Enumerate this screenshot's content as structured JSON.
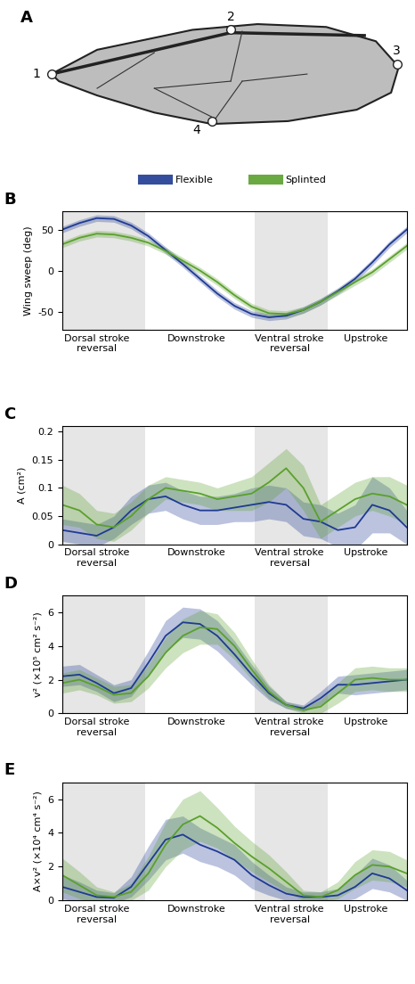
{
  "wing": {
    "title": "A",
    "points": [
      "1",
      "2",
      "3",
      "4"
    ]
  },
  "chart_data": [
    {
      "type": "line",
      "title": "B",
      "y_label": "Wing sweep (deg)",
      "legend": "upper center",
      "xlim": [
        0,
        1
      ],
      "ylim": [
        -72,
        72
      ],
      "yticks": [
        -50,
        0,
        50
      ],
      "xticks": [
        {
          "value": 0.1,
          "label": "Dorsal stroke\nreversal"
        },
        {
          "value": 0.39,
          "label": "Downstroke"
        },
        {
          "value": 0.66,
          "label": "Ventral stroke\nreversal"
        },
        {
          "value": 0.88,
          "label": "Upstroke"
        }
      ],
      "shaded_regions": [
        [
          0,
          0.24
        ],
        [
          0.56,
          0.77
        ]
      ],
      "x": [
        0,
        0.05,
        0.1,
        0.15,
        0.2,
        0.25,
        0.3,
        0.35,
        0.4,
        0.45,
        0.5,
        0.55,
        0.6,
        0.65,
        0.7,
        0.75,
        0.8,
        0.85,
        0.9,
        0.95,
        1.0
      ],
      "series": [
        {
          "name": "Flexible",
          "color": "#1f3a93",
          "values": [
            50,
            58,
            64,
            63,
            55,
            42,
            25,
            8,
            -10,
            -28,
            -43,
            -53,
            -57,
            -55,
            -48,
            -38,
            -25,
            -10,
            10,
            32,
            50
          ],
          "band": [
            4,
            4,
            4,
            4,
            4,
            4,
            4,
            4,
            4,
            4,
            4,
            4,
            4,
            4,
            4,
            4,
            4,
            4,
            4,
            4,
            4
          ]
        },
        {
          "name": "Splinted",
          "color": "#5aa02c",
          "values": [
            32,
            40,
            45,
            44,
            40,
            34,
            24,
            12,
            0,
            -14,
            -30,
            -44,
            -52,
            -53,
            -48,
            -38,
            -26,
            -14,
            -2,
            14,
            30
          ],
          "band": [
            4,
            4,
            4,
            4,
            4,
            4,
            4,
            4,
            4,
            4,
            4,
            4,
            4,
            4,
            4,
            4,
            4,
            4,
            4,
            4,
            4
          ]
        }
      ]
    },
    {
      "type": "line",
      "title": "C",
      "y_label": "A (cm²)",
      "xlim": [
        0,
        1
      ],
      "ylim": [
        0,
        0.21
      ],
      "yticks": [
        0,
        0.05,
        0.1,
        0.15,
        0.2
      ],
      "xticks": [
        {
          "value": 0.1,
          "label": "Dorsal stroke\nreversal"
        },
        {
          "value": 0.39,
          "label": "Downstroke"
        },
        {
          "value": 0.66,
          "label": "Ventral stroke\nreversal"
        },
        {
          "value": 0.88,
          "label": "Upstroke"
        }
      ],
      "shaded_regions": [
        [
          0,
          0.24
        ],
        [
          0.56,
          0.77
        ]
      ],
      "x": [
        0,
        0.05,
        0.1,
        0.15,
        0.2,
        0.25,
        0.3,
        0.35,
        0.4,
        0.45,
        0.5,
        0.55,
        0.6,
        0.65,
        0.7,
        0.75,
        0.8,
        0.85,
        0.9,
        0.95,
        1.0
      ],
      "series": [
        {
          "name": "Flexible",
          "color": "#1f3a93",
          "values": [
            0.025,
            0.02,
            0.015,
            0.03,
            0.06,
            0.08,
            0.085,
            0.07,
            0.06,
            0.06,
            0.065,
            0.07,
            0.075,
            0.07,
            0.045,
            0.04,
            0.025,
            0.03,
            0.07,
            0.06,
            0.03
          ],
          "band": [
            0.02,
            0.02,
            0.02,
            0.02,
            0.025,
            0.025,
            0.025,
            0.025,
            0.025,
            0.025,
            0.025,
            0.03,
            0.03,
            0.03,
            0.03,
            0.03,
            0.03,
            0.04,
            0.05,
            0.04,
            0.03
          ]
        },
        {
          "name": "Splinted",
          "color": "#5aa02c",
          "values": [
            0.07,
            0.06,
            0.035,
            0.03,
            0.05,
            0.08,
            0.1,
            0.095,
            0.09,
            0.08,
            0.085,
            0.09,
            0.11,
            0.135,
            0.1,
            0.04,
            0.06,
            0.08,
            0.09,
            0.085,
            0.07
          ],
          "band": [
            0.035,
            0.03,
            0.025,
            0.025,
            0.025,
            0.025,
            0.02,
            0.02,
            0.02,
            0.02,
            0.025,
            0.03,
            0.035,
            0.035,
            0.04,
            0.03,
            0.03,
            0.03,
            0.03,
            0.035,
            0.035
          ]
        }
      ]
    },
    {
      "type": "line",
      "title": "D",
      "y_label": "v² (×10⁵ cm² s⁻²)",
      "xlim": [
        0,
        1
      ],
      "ylim": [
        0,
        7
      ],
      "yticks": [
        0,
        2,
        4,
        6
      ],
      "xticks": [
        {
          "value": 0.1,
          "label": "Dorsal stroke\nreversal"
        },
        {
          "value": 0.39,
          "label": "Downstroke"
        },
        {
          "value": 0.66,
          "label": "Ventral stroke\nreversal"
        },
        {
          "value": 0.88,
          "label": "Upstroke"
        }
      ],
      "shaded_regions": [
        [
          0,
          0.24
        ],
        [
          0.56,
          0.77
        ]
      ],
      "x": [
        0,
        0.05,
        0.1,
        0.15,
        0.2,
        0.25,
        0.3,
        0.35,
        0.4,
        0.45,
        0.5,
        0.55,
        0.6,
        0.65,
        0.7,
        0.75,
        0.8,
        0.85,
        0.9,
        0.95,
        1.0
      ],
      "series": [
        {
          "name": "Flexible",
          "color": "#1f3a93",
          "values": [
            2.2,
            2.3,
            1.8,
            1.2,
            1.5,
            3.0,
            4.6,
            5.4,
            5.3,
            4.6,
            3.5,
            2.3,
            1.2,
            0.5,
            0.3,
            0.9,
            1.7,
            1.7,
            1.8,
            1.9,
            2.0
          ],
          "band": [
            0.6,
            0.6,
            0.5,
            0.5,
            0.5,
            0.7,
            0.9,
            0.9,
            0.9,
            0.9,
            0.8,
            0.6,
            0.4,
            0.2,
            0.2,
            0.4,
            0.5,
            0.6,
            0.6,
            0.6,
            0.6
          ]
        },
        {
          "name": "Splinted",
          "color": "#5aa02c",
          "values": [
            1.8,
            2.0,
            1.6,
            1.1,
            1.2,
            2.2,
            3.6,
            4.6,
            5.1,
            5.0,
            4.0,
            2.6,
            1.3,
            0.5,
            0.2,
            0.4,
            1.2,
            2.0,
            2.1,
            2.0,
            2.0
          ],
          "band": [
            0.6,
            0.6,
            0.5,
            0.5,
            0.5,
            0.7,
            0.9,
            1.0,
            1.0,
            0.9,
            0.8,
            0.6,
            0.4,
            0.2,
            0.2,
            0.4,
            0.6,
            0.7,
            0.7,
            0.7,
            0.7
          ]
        }
      ]
    },
    {
      "type": "line",
      "title": "E",
      "y_label": "A×v² (×10⁴ cm⁴ s⁻²)",
      "xlim": [
        0,
        1
      ],
      "ylim": [
        0,
        7
      ],
      "yticks": [
        0,
        2,
        4,
        6
      ],
      "xticks": [
        {
          "value": 0.1,
          "label": "Dorsal stroke\nreversal"
        },
        {
          "value": 0.39,
          "label": "Downstroke"
        },
        {
          "value": 0.66,
          "label": "Ventral stroke\nreversal"
        },
        {
          "value": 0.88,
          "label": "Upstroke"
        }
      ],
      "shaded_regions": [
        [
          0,
          0.24
        ],
        [
          0.56,
          0.77
        ]
      ],
      "x": [
        0,
        0.05,
        0.1,
        0.15,
        0.2,
        0.25,
        0.3,
        0.35,
        0.4,
        0.45,
        0.5,
        0.55,
        0.6,
        0.65,
        0.7,
        0.75,
        0.8,
        0.85,
        0.9,
        0.95,
        1.0
      ],
      "series": [
        {
          "name": "Flexible",
          "color": "#1f3a93",
          "values": [
            0.8,
            0.5,
            0.2,
            0.15,
            0.8,
            2.2,
            3.6,
            3.9,
            3.3,
            2.9,
            2.4,
            1.5,
            0.9,
            0.4,
            0.2,
            0.2,
            0.3,
            0.8,
            1.6,
            1.3,
            0.6
          ],
          "band": [
            0.7,
            0.6,
            0.4,
            0.3,
            0.6,
            1.0,
            1.2,
            1.1,
            1.0,
            0.9,
            0.9,
            0.8,
            0.6,
            0.4,
            0.3,
            0.3,
            0.4,
            0.7,
            0.9,
            0.8,
            0.6
          ]
        },
        {
          "name": "Splinted",
          "color": "#5aa02c",
          "values": [
            1.5,
            0.9,
            0.3,
            0.2,
            0.5,
            1.6,
            3.3,
            4.5,
            5.0,
            4.3,
            3.4,
            2.6,
            1.9,
            1.1,
            0.3,
            0.2,
            0.6,
            1.5,
            2.1,
            2.0,
            1.6
          ],
          "band": [
            1.0,
            0.8,
            0.5,
            0.3,
            0.5,
            1.0,
            1.3,
            1.5,
            1.5,
            1.2,
            1.0,
            0.9,
            0.8,
            0.6,
            0.3,
            0.3,
            0.5,
            0.8,
            0.9,
            0.9,
            0.8
          ]
        }
      ]
    }
  ]
}
